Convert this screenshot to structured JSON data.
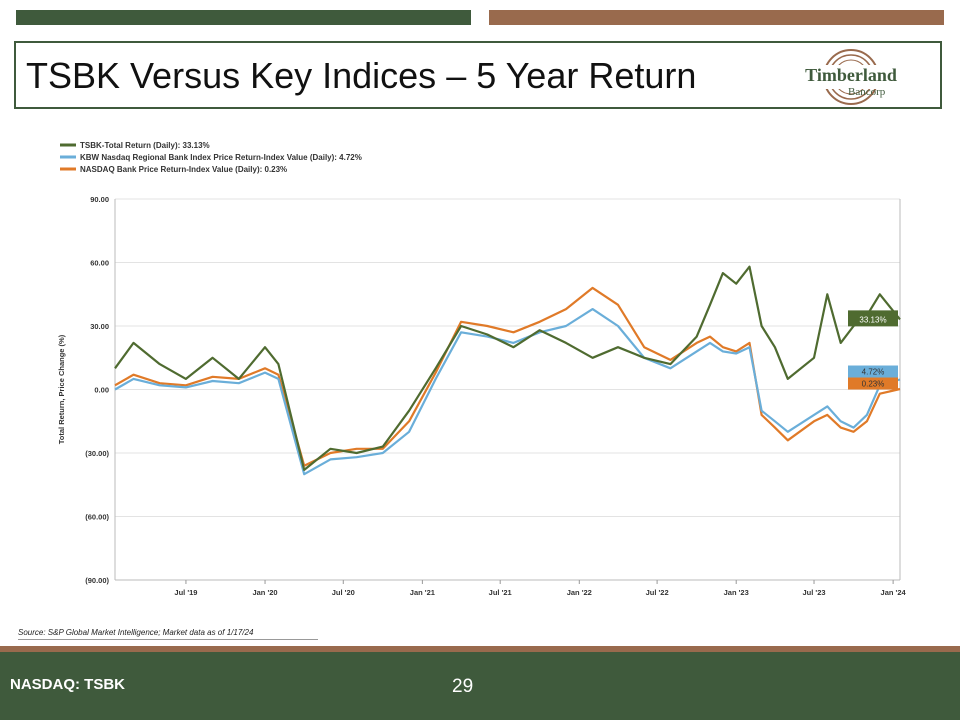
{
  "colors": {
    "dark_green": "#3f5a3c",
    "brown": "#996a4d",
    "tsbk": "#4f6b30",
    "kbw": "#6aaed9",
    "nasdaq_bank": "#e07a28",
    "grid": "#e3e3e3"
  },
  "header": {
    "title": "TSBK Versus Key Indices – 5 Year Return",
    "logo_main": "Timberland",
    "logo_sub": "Bancorp"
  },
  "footer": {
    "ticker": "NASDAQ: TSBK",
    "page_number": "29",
    "source": "Source: S&P Global Market Intelligence; Market data as of 1/17/24"
  },
  "chart_data": {
    "type": "line",
    "ylabel": "Total Return, Price Change (%)",
    "ylim": [
      -90,
      90
    ],
    "y_ticks": [
      90,
      60,
      30,
      0,
      -30,
      -60,
      -90
    ],
    "y_tick_labels": [
      "90.00",
      "60.00",
      "30.00",
      "0.00",
      "(30.00)",
      "(60.00)",
      "(90.00)"
    ],
    "x_range": [
      "2019-01-17",
      "2024-01-17"
    ],
    "x_ticks": [
      "2019-07",
      "2020-01",
      "2020-07",
      "2021-01",
      "2021-07",
      "2022-01",
      "2022-07",
      "2023-01",
      "2023-07",
      "2024-01"
    ],
    "x_tick_labels": [
      "Jul '19",
      "Jan '20",
      "Jul '20",
      "Jan '21",
      "Jul '21",
      "Jan '22",
      "Jul '22",
      "Jan '23",
      "Jul '23",
      "Jan '24"
    ],
    "grid": "horizontal",
    "legend_position": "top-left",
    "series": [
      {
        "name": "TSBK-Total Return (Daily): 33.13%",
        "end_label": "33.13%",
        "color": "#4f6b30",
        "x": [
          "2019-01-17",
          "2019-03",
          "2019-05",
          "2019-07",
          "2019-09",
          "2019-11",
          "2020-01",
          "2020-02",
          "2020-04",
          "2020-06",
          "2020-08",
          "2020-10",
          "2020-12",
          "2021-02",
          "2021-04",
          "2021-06",
          "2021-08",
          "2021-10",
          "2021-12",
          "2022-02",
          "2022-04",
          "2022-06",
          "2022-08",
          "2022-10",
          "2022-11",
          "2022-12",
          "2023-01",
          "2023-02",
          "2023-03",
          "2023-04",
          "2023-05",
          "2023-07",
          "2023-08",
          "2023-09",
          "2023-10",
          "2023-11",
          "2023-12",
          "2024-01-17"
        ],
        "values": [
          10,
          22,
          12,
          5,
          15,
          5,
          20,
          12,
          -38,
          -28,
          -30,
          -27,
          -10,
          10,
          30,
          26,
          20,
          28,
          22,
          15,
          20,
          15,
          12,
          25,
          40,
          55,
          50,
          58,
          30,
          20,
          5,
          15,
          45,
          22,
          30,
          35,
          45,
          33.13
        ]
      },
      {
        "name": "KBW Nasdaq Regional Bank Index Price Return-Index Value (Daily): 4.72%",
        "end_label": "4.72%",
        "color": "#6aaed9",
        "x": [
          "2019-01-17",
          "2019-03",
          "2019-05",
          "2019-07",
          "2019-09",
          "2019-11",
          "2020-01",
          "2020-02",
          "2020-04",
          "2020-06",
          "2020-08",
          "2020-10",
          "2020-12",
          "2021-02",
          "2021-04",
          "2021-06",
          "2021-08",
          "2021-10",
          "2021-12",
          "2022-02",
          "2022-04",
          "2022-06",
          "2022-08",
          "2022-10",
          "2022-11",
          "2022-12",
          "2023-01",
          "2023-02",
          "2023-03",
          "2023-04",
          "2023-05",
          "2023-07",
          "2023-08",
          "2023-09",
          "2023-10",
          "2023-11",
          "2023-12",
          "2024-01-17"
        ],
        "values": [
          0,
          5,
          2,
          1,
          4,
          3,
          8,
          5,
          -40,
          -33,
          -32,
          -30,
          -20,
          5,
          27,
          25,
          22,
          27,
          30,
          38,
          30,
          15,
          10,
          18,
          22,
          18,
          17,
          20,
          -10,
          -15,
          -20,
          -12,
          -8,
          -15,
          -18,
          -12,
          2,
          4.72
        ]
      },
      {
        "name": "NASDAQ Bank Price Return-Index Value (Daily): 0.23%",
        "end_label": "0.23%",
        "color": "#e07a28",
        "x": [
          "2019-01-17",
          "2019-03",
          "2019-05",
          "2019-07",
          "2019-09",
          "2019-11",
          "2020-01",
          "2020-02",
          "2020-04",
          "2020-06",
          "2020-08",
          "2020-10",
          "2020-12",
          "2021-02",
          "2021-04",
          "2021-06",
          "2021-08",
          "2021-10",
          "2021-12",
          "2022-02",
          "2022-04",
          "2022-06",
          "2022-08",
          "2022-10",
          "2022-11",
          "2022-12",
          "2023-01",
          "2023-02",
          "2023-03",
          "2023-04",
          "2023-05",
          "2023-07",
          "2023-08",
          "2023-09",
          "2023-10",
          "2023-11",
          "2023-12",
          "2024-01-17"
        ],
        "values": [
          2,
          7,
          3,
          2,
          6,
          5,
          10,
          7,
          -36,
          -30,
          -28,
          -28,
          -15,
          8,
          32,
          30,
          27,
          32,
          38,
          48,
          40,
          20,
          14,
          22,
          25,
          20,
          18,
          22,
          -12,
          -18,
          -24,
          -15,
          -12,
          -18,
          -20,
          -15,
          -2,
          0.23
        ]
      }
    ]
  }
}
